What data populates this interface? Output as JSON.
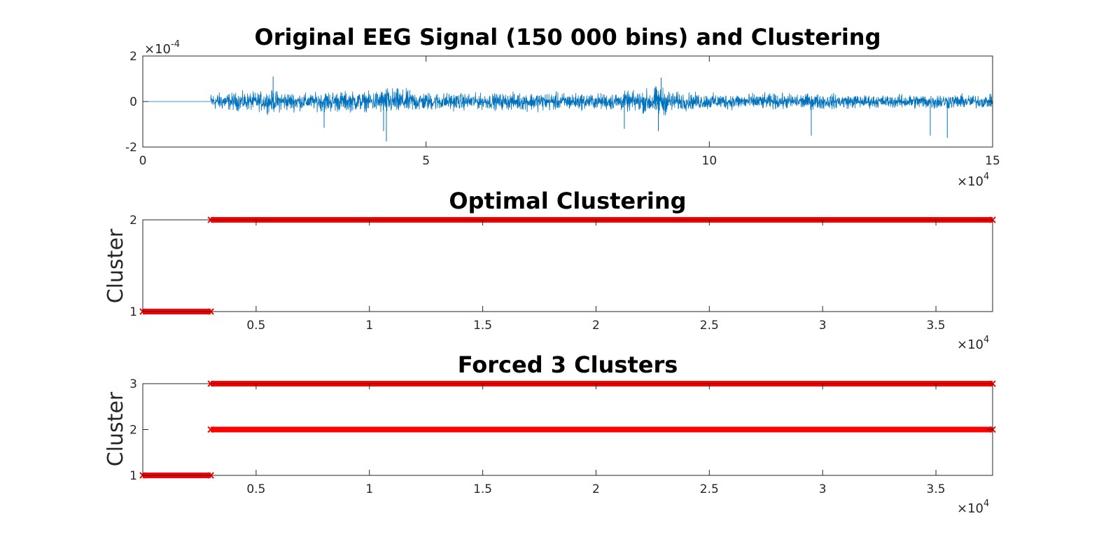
{
  "figure": {
    "background": "#ffffff",
    "axis_color": "#262626",
    "signal_color": "#0072bd",
    "cluster_color": "#ff0000"
  },
  "chart_data": [
    {
      "type": "line",
      "title": "Original EEG Signal (150 000 bins) and Clustering",
      "xlabel": "",
      "ylabel": "",
      "xlim": [
        0,
        150000
      ],
      "ylim": [
        -0.0002,
        0.0002
      ],
      "x_ticks": [
        "0",
        "5",
        "10",
        "15"
      ],
      "x_tick_values": [
        0,
        50000,
        100000,
        150000
      ],
      "x_exponent": "×10",
      "x_exponent_power": "4",
      "y_ticks": [
        "-2",
        "0",
        "2"
      ],
      "y_tick_values": [
        -0.0002,
        0,
        0.0002
      ],
      "y_exponent": "×10",
      "y_exponent_power": "-4",
      "series": [
        {
          "color": "#0072bd",
          "flat_until": 12000,
          "envelope_x": [
            12000,
            20000,
            23000,
            30000,
            32000,
            40000,
            43000,
            50000,
            60000,
            70000,
            80000,
            88000,
            91000,
            94000,
            100000,
            110000,
            120000,
            130000,
            140000,
            150000
          ],
          "envelope_amp": [
            5.5e-05,
            6e-05,
            7e-05,
            5e-05,
            7e-05,
            6e-05,
            9e-05,
            6e-05,
            5e-05,
            6e-05,
            5e-05,
            7e-05,
            0.0001,
            6e-05,
            5e-05,
            5e-05,
            5e-05,
            4e-05,
            5e-05,
            4e-05
          ],
          "spikes": [
            [
              43000,
              -0.000175
            ],
            [
              42500,
              -0.00013
            ],
            [
              32000,
              -0.000115
            ],
            [
              91000,
              -0.00013
            ],
            [
              118000,
              -0.00015
            ],
            [
              139000,
              -0.00015
            ],
            [
              142000,
              -0.00016
            ],
            [
              85000,
              -0.00012
            ],
            [
              23000,
              0.00011
            ],
            [
              91500,
              0.000105
            ]
          ]
        }
      ]
    },
    {
      "type": "scatter",
      "title": "Optimal Clustering",
      "xlabel": "",
      "ylabel": "Cluster",
      "xlim": [
        0,
        37500
      ],
      "ylim": [
        1,
        2
      ],
      "x_ticks": [
        "0.5",
        "1",
        "1.5",
        "2",
        "2.5",
        "3",
        "3.5"
      ],
      "x_tick_values": [
        5000,
        10000,
        15000,
        20000,
        25000,
        30000,
        35000
      ],
      "x_exponent": "×10",
      "x_exponent_power": "4",
      "y_ticks": [
        "1",
        "2"
      ],
      "y_tick_values": [
        1,
        2
      ],
      "marker": "x",
      "series": [
        {
          "color": "#ff0000",
          "x_range": [
            0,
            3000
          ],
          "y": 1
        },
        {
          "color": "#ff0000",
          "x_range": [
            3000,
            37500
          ],
          "y": 2
        }
      ]
    },
    {
      "type": "scatter",
      "title": "Forced 3 Clusters",
      "xlabel": "",
      "ylabel": "Cluster",
      "xlim": [
        0,
        37500
      ],
      "ylim": [
        1,
        3
      ],
      "x_ticks": [
        "0.5",
        "1",
        "1.5",
        "2",
        "2.5",
        "3",
        "3.5"
      ],
      "x_tick_values": [
        5000,
        10000,
        15000,
        20000,
        25000,
        30000,
        35000
      ],
      "x_exponent": "×10",
      "x_exponent_power": "4",
      "y_ticks": [
        "1",
        "2",
        "3"
      ],
      "y_tick_values": [
        1,
        2,
        3
      ],
      "marker": "x",
      "series": [
        {
          "color": "#ff0000",
          "x_range": [
            0,
            3000
          ],
          "y": 1
        },
        {
          "color": "#ff0000",
          "x_range": [
            3000,
            37500
          ],
          "y": 2
        },
        {
          "color": "#ff0000",
          "x_range": [
            3000,
            37500
          ],
          "y": 3
        }
      ]
    }
  ]
}
